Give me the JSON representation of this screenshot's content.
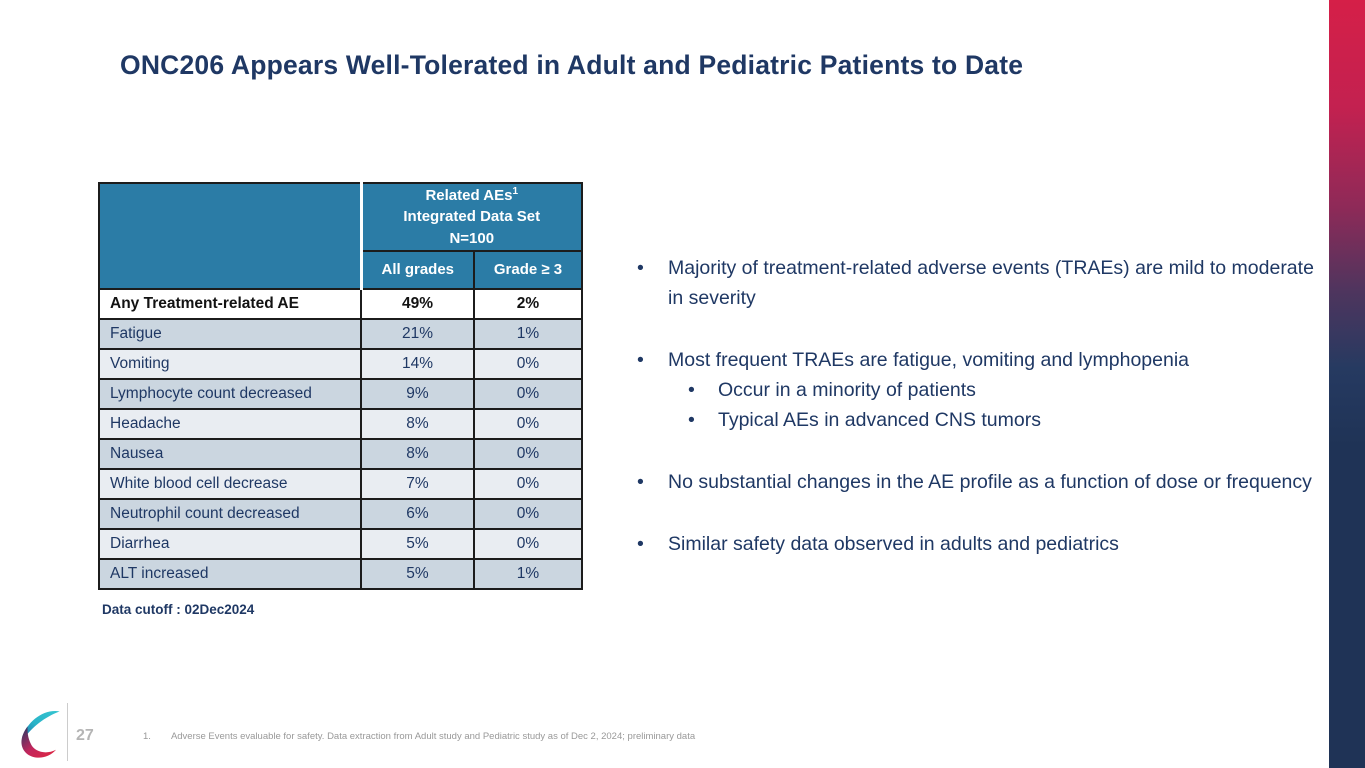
{
  "slide": {
    "title": "ONC206 Appears Well-Tolerated in Adult and Pediatric Patients to Date",
    "page_number": "27",
    "data_cutoff": "Data cutoff : 02Dec2024",
    "footnote": {
      "number": "1.",
      "text": "Adverse Events evaluable for safety. Data extraction from Adult study and Pediatric study as of Dec 2, 2024; preliminary data"
    },
    "logo_icon": "ribbon-swirl-logo"
  },
  "table": {
    "group_header": {
      "line1": "Related AEs",
      "superscript": "1",
      "line2": "Integrated Data Set",
      "line3": "N=100"
    },
    "columns": [
      "All grades",
      "Grade ≥ 3"
    ],
    "rows": [
      {
        "label": "Any Treatment-related AE",
        "all_grades": "49%",
        "grade_3_plus": "2%",
        "emphasis": true
      },
      {
        "label": "Fatigue",
        "all_grades": "21%",
        "grade_3_plus": "1%"
      },
      {
        "label": "Vomiting",
        "all_grades": "14%",
        "grade_3_plus": "0%"
      },
      {
        "label": "Lymphocyte count decreased",
        "all_grades": "9%",
        "grade_3_plus": "0%"
      },
      {
        "label": "Headache",
        "all_grades": "8%",
        "grade_3_plus": "0%"
      },
      {
        "label": "Nausea",
        "all_grades": "8%",
        "grade_3_plus": "0%"
      },
      {
        "label": "White blood cell decrease",
        "all_grades": "7%",
        "grade_3_plus": "0%"
      },
      {
        "label": "Neutrophil count decreased",
        "all_grades": "6%",
        "grade_3_plus": "0%"
      },
      {
        "label": "Diarrhea",
        "all_grades": "5%",
        "grade_3_plus": "0%"
      },
      {
        "label": "ALT increased",
        "all_grades": "5%",
        "grade_3_plus": "1%"
      }
    ]
  },
  "bullets": [
    {
      "text": "Majority of treatment-related adverse events (TRAEs) are mild to moderate in severity",
      "sub": []
    },
    {
      "text": "Most frequent TRAEs are fatigue, vomiting and lymphopenia",
      "sub": [
        "Occur in a minority of patients",
        "Typical AEs in advanced CNS tumors"
      ]
    },
    {
      "text": "No substantial changes in the AE profile as a function of dose or frequency",
      "sub": []
    },
    {
      "text": "Similar safety data observed in adults and pediatrics",
      "sub": []
    }
  ],
  "colors": {
    "header_teal": "#2B7CA6",
    "navy_text": "#1F3864",
    "row_dark": "#CBD6E0",
    "row_light": "#E9EDF2",
    "edge_bar_top": "#D51F48",
    "edge_bar_bottom": "#1F3356"
  }
}
